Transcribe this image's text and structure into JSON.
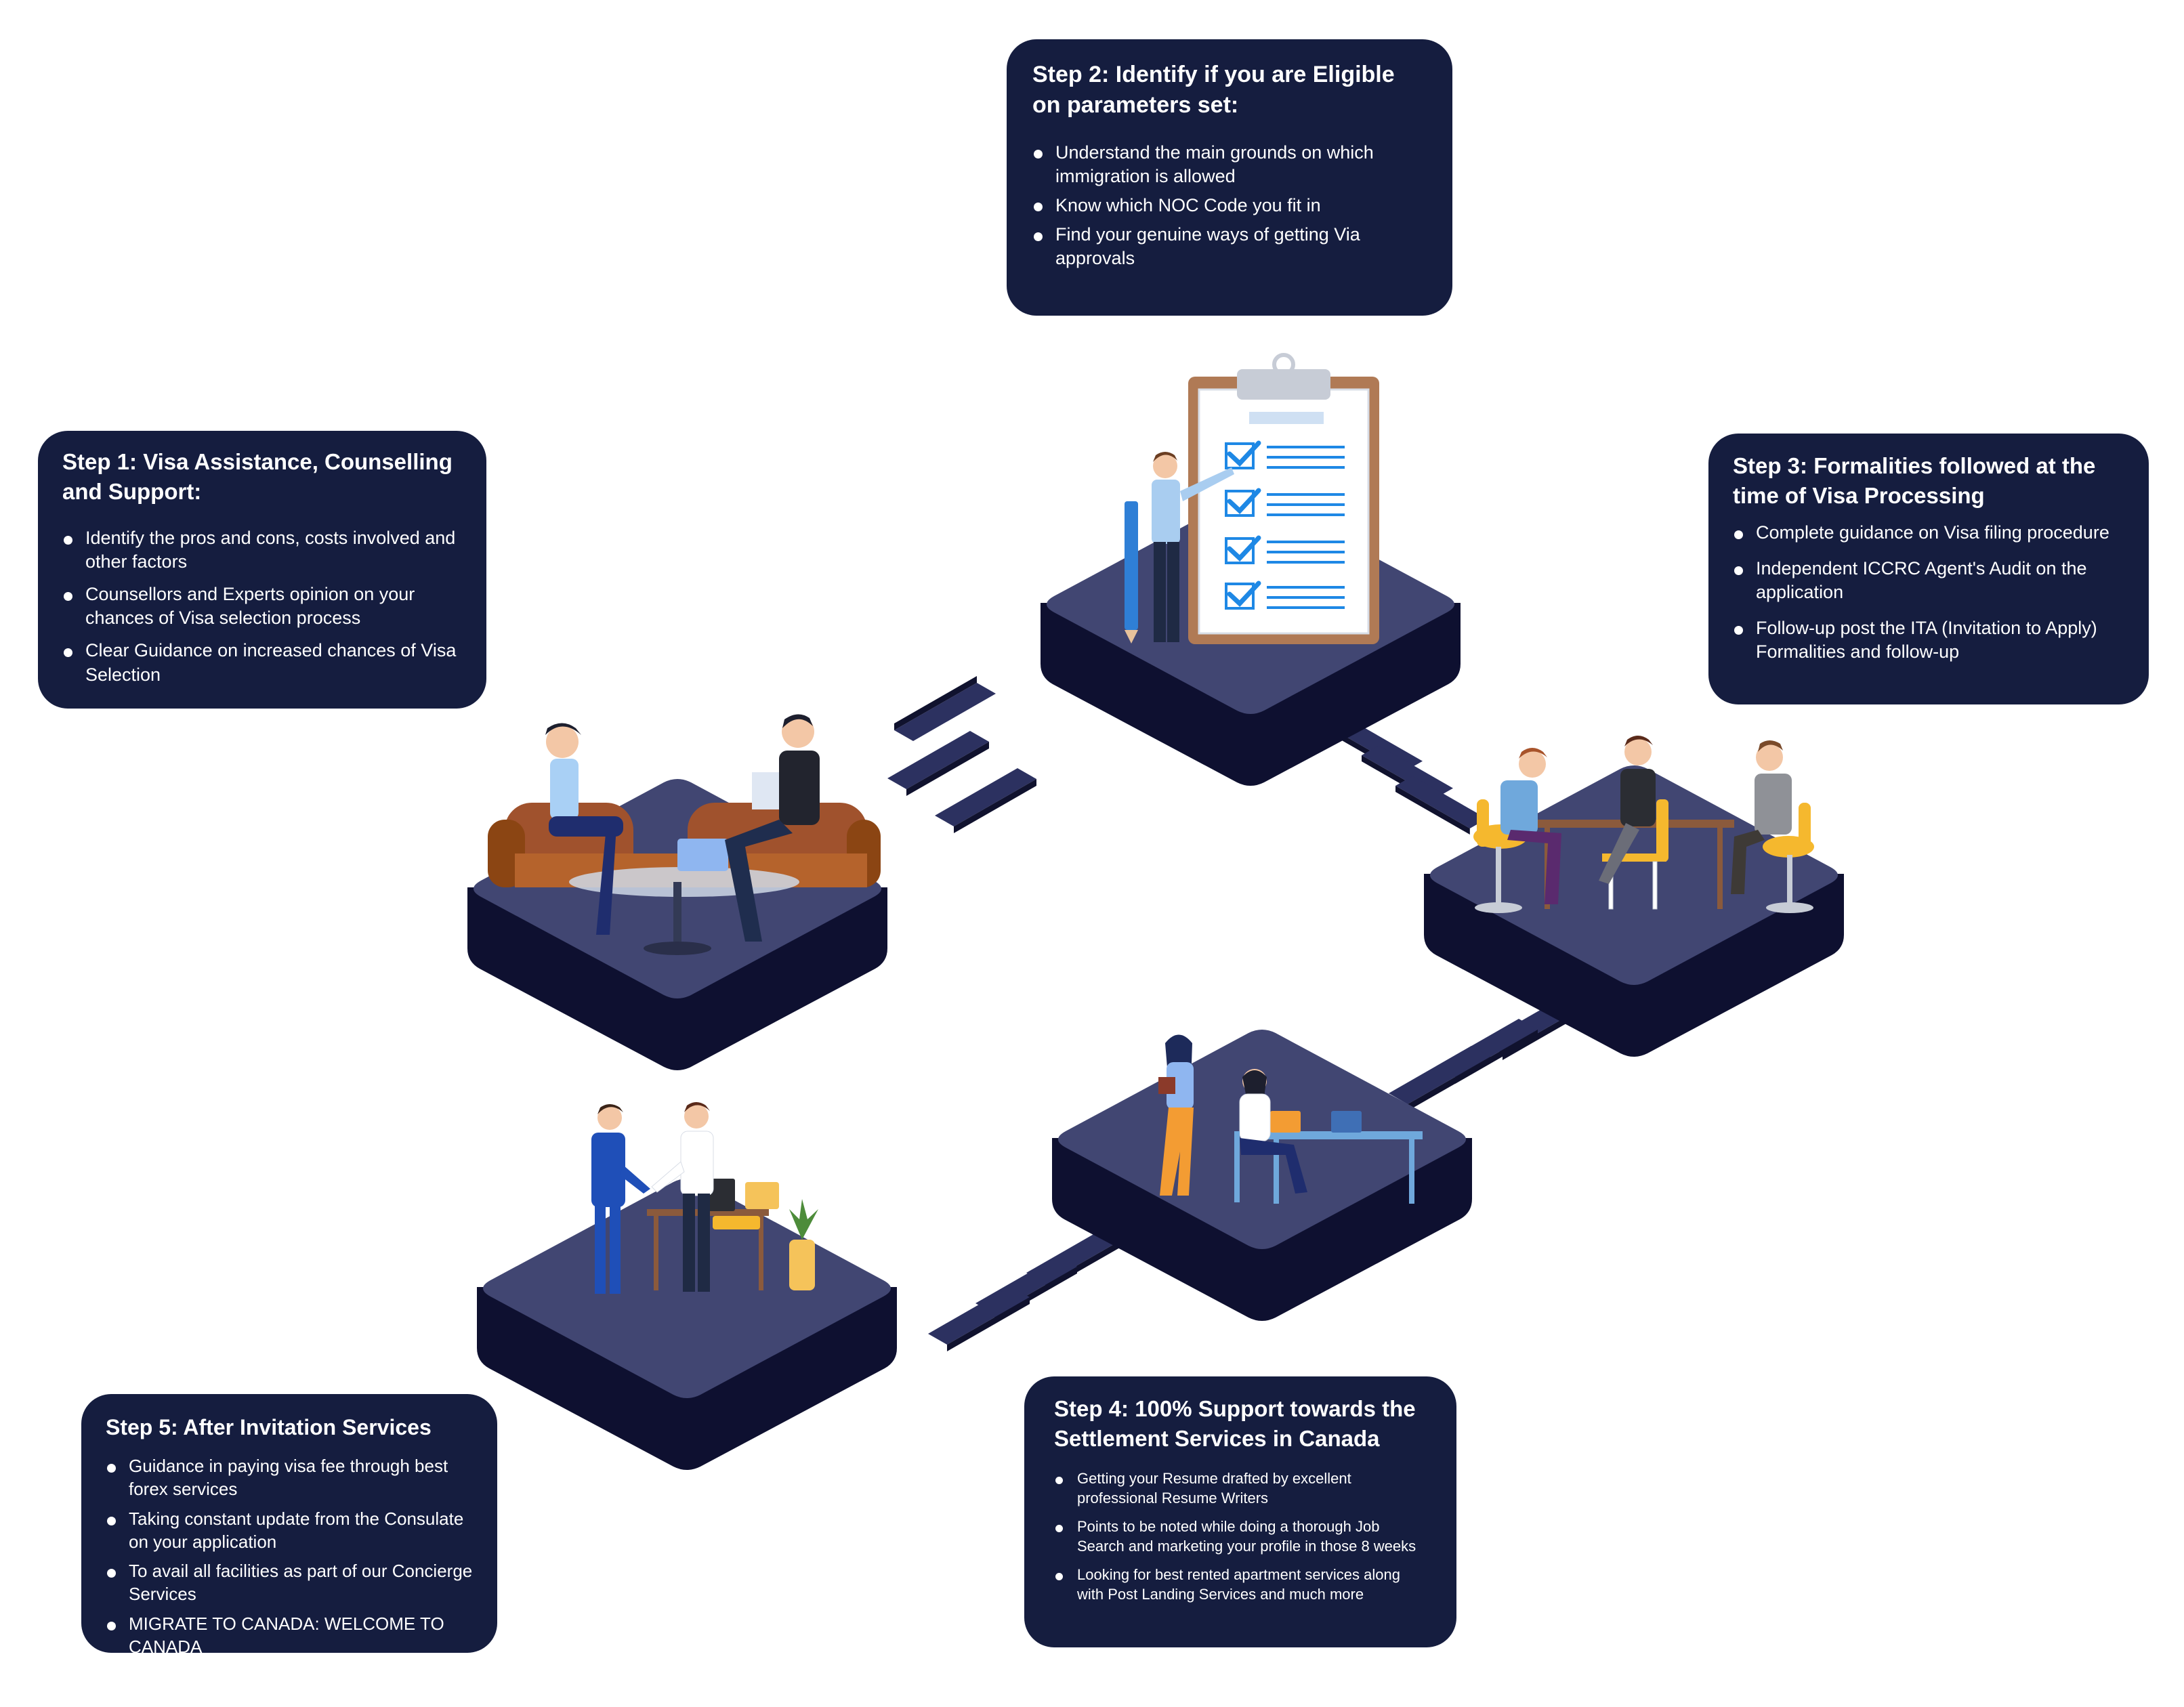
{
  "steps": [
    {
      "title": "Step 1: Visa Assistance, Counselling and Support:",
      "items": [
        "Identify the pros and cons, costs involved and other factors",
        "Counsellors and Experts opinion on your chances of Visa selection process",
        "Clear Guidance on increased chances of Visa Selection"
      ]
    },
    {
      "title": "Step 2: Identify if you are Eligible on parameters set:",
      "items": [
        "Understand the main grounds on which immigration is allowed",
        "Know which NOC Code you fit in",
        "Find your genuine ways of getting Via approvals"
      ]
    },
    {
      "title": "Step 3: Formalities followed at the time of Visa Processing",
      "items": [
        "Complete guidance on Visa filing procedure",
        "Independent ICCRC Agent's Audit on the application",
        "Follow-up post the ITA (Invitation to Apply) Formalities and follow-up"
      ]
    },
    {
      "title": "Step 4: 100% Support towards the Settlement Services in Canada",
      "items": [
        "Getting your Resume drafted by excellent professional Resume Writers",
        "Points to be noted while doing a thorough Job Search and marketing your profile in those 8 weeks",
        "Looking for best rented apartment services along with Post Landing Services and much more"
      ]
    },
    {
      "title": "Step 5: After Invitation Services",
      "items": [
        "Guidance in paying visa fee through best forex services",
        "Taking constant update from the Consulate on your application",
        "To avail all facilities as part of our Concierge Services",
        "MIGRATE TO CANADA: WELCOME TO CANADA"
      ]
    }
  ],
  "colors": {
    "box_bg": "#151d3f",
    "platform_top": "#414672",
    "platform_side": "#0e1030",
    "connector": "#2c3160",
    "accent_blue": "#1e88e5",
    "chair_brown": "#a0522d",
    "chair_yellow": "#f5b82e"
  },
  "illustrations": [
    "counselling-sofa-scene",
    "checklist-clipboard-scene",
    "meeting-table-scene",
    "office-desk-scene",
    "handshake-scene"
  ]
}
